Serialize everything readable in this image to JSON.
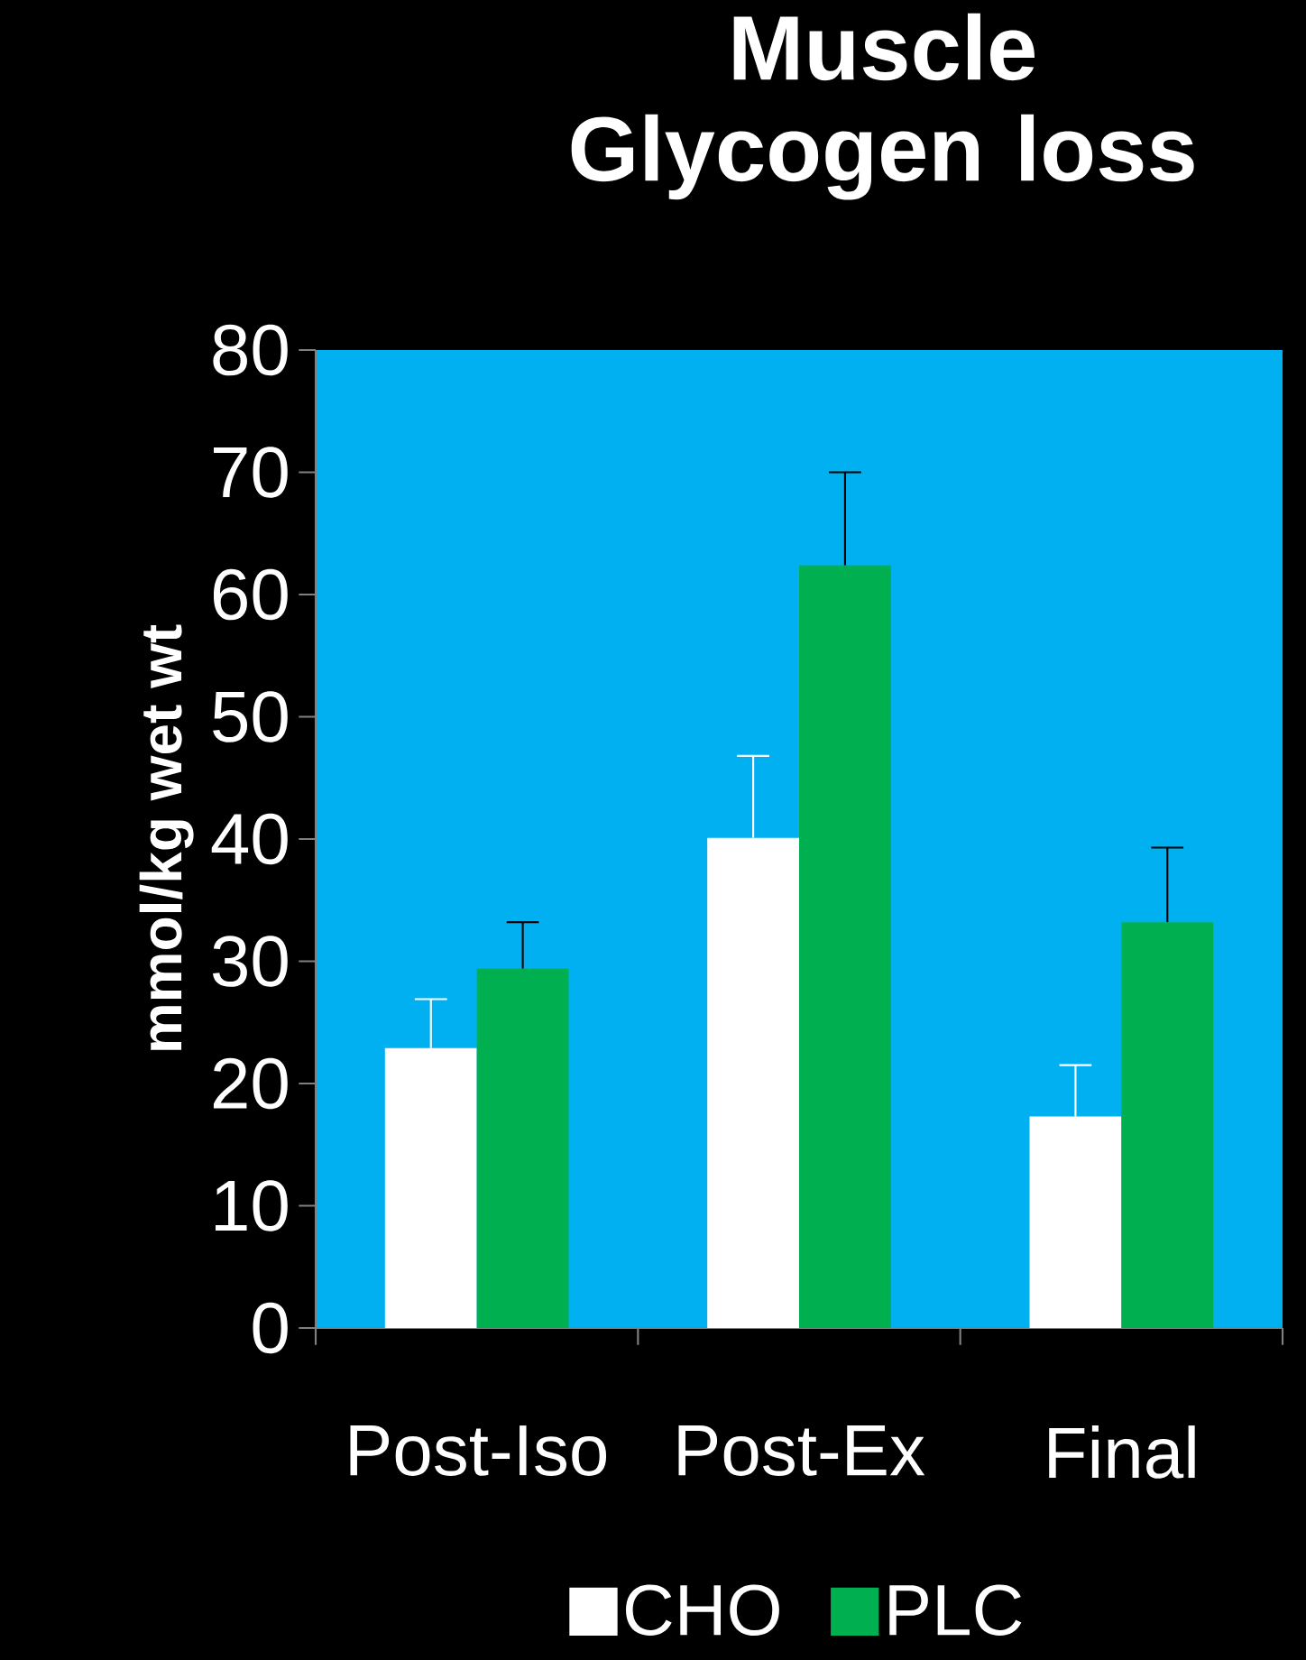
{
  "chart_data": {
    "type": "bar",
    "title": "Muscle Glycogen loss",
    "ylabel": "mmol/kg wet wt",
    "categories": [
      "Post-Iso",
      "Post-Ex",
      "Final"
    ],
    "series": [
      {
        "name": "CHO",
        "color": "#ffffff",
        "values": [
          22.9,
          40.1,
          17.3
        ],
        "errors": [
          [
            22.9,
            26.9
          ],
          [
            40.1,
            46.8
          ],
          [
            17.3,
            21.5
          ]
        ]
      },
      {
        "name": "PLC",
        "color": "#00b050",
        "values": [
          29.4,
          62.4,
          33.2
        ],
        "errors": [
          [
            29.4,
            33.2
          ],
          [
            62.4,
            70.0
          ],
          [
            33.2,
            39.3
          ]
        ]
      }
    ],
    "ylim": [
      0,
      80
    ],
    "yticks": [
      0,
      10,
      20,
      30,
      40,
      50,
      60,
      70,
      80
    ],
    "legend": "bottom",
    "grid": false
  }
}
